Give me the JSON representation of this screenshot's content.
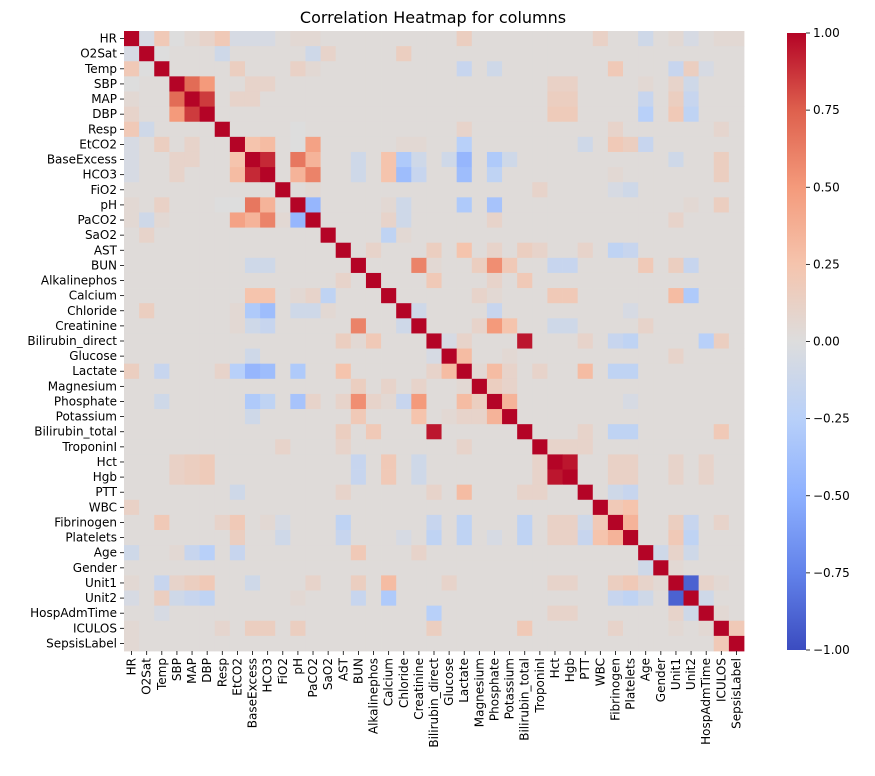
{
  "chart_data": {
    "type": "heatmap",
    "title": "Correlation Heatmap for columns",
    "xlabel": "",
    "ylabel": "",
    "colormap": "coolwarm",
    "vmin": -1,
    "vmax": 1,
    "colorbar_ticks": [
      1.0,
      0.75,
      0.5,
      0.25,
      0.0,
      -0.25,
      -0.5,
      -0.75,
      -1.0
    ],
    "colorbar_tick_labels": [
      "1.00",
      "0.75",
      "0.50",
      "0.25",
      "0.00",
      "−0.25",
      "−0.50",
      "−0.75",
      "−1.00"
    ],
    "labels": [
      "HR",
      "O2Sat",
      "Temp",
      "SBP",
      "MAP",
      "DBP",
      "Resp",
      "EtCO2",
      "BaseExcess",
      "HCO3",
      "FiO2",
      "pH",
      "PaCO2",
      "SaO2",
      "AST",
      "BUN",
      "Alkalinephos",
      "Calcium",
      "Chloride",
      "Creatinine",
      "Bilirubin_direct",
      "Glucose",
      "Lactate",
      "Magnesium",
      "Phosphate",
      "Potassium",
      "Bilirubin_total",
      "TroponinI",
      "Hct",
      "Hgb",
      "PTT",
      "WBC",
      "Fibrinogen",
      "Platelets",
      "Age",
      "Gender",
      "Unit1",
      "Unit2",
      "HospAdmTime",
      "ICULOS",
      "SepsisLabel"
    ],
    "baseline": 0.02,
    "pairs": [
      [
        "HR",
        "O2Sat",
        -0.05
      ],
      [
        "HR",
        "Temp",
        0.2
      ],
      [
        "HR",
        "SBP",
        0.0
      ],
      [
        "HR",
        "MAP",
        0.05
      ],
      [
        "HR",
        "DBP",
        0.1
      ],
      [
        "HR",
        "Resp",
        0.2
      ],
      [
        "HR",
        "EtCO2",
        -0.05
      ],
      [
        "HR",
        "BaseExcess",
        -0.05
      ],
      [
        "HR",
        "HCO3",
        -0.05
      ],
      [
        "HR",
        "pH",
        0.05
      ],
      [
        "HR",
        "PaCO2",
        0.05
      ],
      [
        "HR",
        "Lactate",
        0.15
      ],
      [
        "HR",
        "WBC",
        0.12
      ],
      [
        "HR",
        "Age",
        -0.1
      ],
      [
        "HR",
        "Unit1",
        0.05
      ],
      [
        "HR",
        "Unit2",
        -0.05
      ],
      [
        "HR",
        "ICULOS",
        0.05
      ],
      [
        "HR",
        "SepsisLabel",
        0.05
      ],
      [
        "O2Sat",
        "Temp",
        0.0
      ],
      [
        "O2Sat",
        "Resp",
        -0.1
      ],
      [
        "O2Sat",
        "PaCO2",
        -0.1
      ],
      [
        "O2Sat",
        "SaO2",
        0.1
      ],
      [
        "O2Sat",
        "Chloride",
        0.15
      ],
      [
        "Temp",
        "SBP",
        0.02
      ],
      [
        "Temp",
        "EtCO2",
        0.15
      ],
      [
        "Temp",
        "pH",
        0.12
      ],
      [
        "Temp",
        "PaCO2",
        0.05
      ],
      [
        "Temp",
        "Lactate",
        -0.15
      ],
      [
        "Temp",
        "Fibrinogen",
        0.2
      ],
      [
        "Temp",
        "Unit1",
        -0.15
      ],
      [
        "Temp",
        "Unit2",
        0.15
      ],
      [
        "Temp",
        "HospAdmTime",
        -0.05
      ],
      [
        "Temp",
        "Phosphate",
        -0.1
      ],
      [
        "SBP",
        "MAP",
        0.7
      ],
      [
        "SBP",
        "DBP",
        0.5
      ],
      [
        "SBP",
        "BaseExcess",
        0.1
      ],
      [
        "SBP",
        "HCO3",
        0.1
      ],
      [
        "SBP",
        "Hct",
        0.12
      ],
      [
        "SBP",
        "Hgb",
        0.12
      ],
      [
        "SBP",
        "Age",
        0.05
      ],
      [
        "SBP",
        "Unit1",
        0.1
      ],
      [
        "SBP",
        "Unit2",
        -0.1
      ],
      [
        "MAP",
        "DBP",
        0.85
      ],
      [
        "MAP",
        "EtCO2",
        0.1
      ],
      [
        "MAP",
        "BaseExcess",
        0.1
      ],
      [
        "MAP",
        "Hct",
        0.15
      ],
      [
        "MAP",
        "Hgb",
        0.15
      ],
      [
        "MAP",
        "Age",
        -0.15
      ],
      [
        "MAP",
        "Unit1",
        0.15
      ],
      [
        "MAP",
        "Unit2",
        -0.15
      ],
      [
        "DBP",
        "Hct",
        0.18
      ],
      [
        "DBP",
        "Hgb",
        0.18
      ],
      [
        "DBP",
        "Age",
        -0.25
      ],
      [
        "DBP",
        "Unit1",
        0.2
      ],
      [
        "DBP",
        "Unit2",
        -0.2
      ],
      [
        "Resp",
        "Lactate",
        0.1
      ],
      [
        "Resp",
        "pH",
        0.0
      ],
      [
        "Resp",
        "ICULOS",
        0.08
      ],
      [
        "Resp",
        "Fibrinogen",
        0.1
      ],
      [
        "EtCO2",
        "BaseExcess",
        0.25
      ],
      [
        "EtCO2",
        "HCO3",
        0.3
      ],
      [
        "EtCO2",
        "pH",
        0.0
      ],
      [
        "EtCO2",
        "PaCO2",
        0.45
      ],
      [
        "EtCO2",
        "Lactate",
        -0.25
      ],
      [
        "EtCO2",
        "Fibrinogen",
        0.2
      ],
      [
        "EtCO2",
        "Platelets",
        0.15
      ],
      [
        "EtCO2",
        "Age",
        -0.15
      ],
      [
        "EtCO2",
        "PTT",
        -0.1
      ],
      [
        "EtCO2",
        "Creatinine",
        0.05
      ],
      [
        "EtCO2",
        "Chloride",
        0.05
      ],
      [
        "BaseExcess",
        "HCO3",
        0.9
      ],
      [
        "BaseExcess",
        "pH",
        0.65
      ],
      [
        "BaseExcess",
        "PaCO2",
        0.35
      ],
      [
        "BaseExcess",
        "Calcium",
        0.25
      ],
      [
        "BaseExcess",
        "Chloride",
        -0.3
      ],
      [
        "BaseExcess",
        "Lactate",
        -0.45
      ],
      [
        "BaseExcess",
        "Phosphate",
        -0.3
      ],
      [
        "BaseExcess",
        "Potassium",
        -0.1
      ],
      [
        "BaseExcess",
        "BUN",
        -0.1
      ],
      [
        "BaseExcess",
        "Creatinine",
        -0.1
      ],
      [
        "BaseExcess",
        "Unit1",
        -0.1
      ],
      [
        "BaseExcess",
        "ICULOS",
        0.15
      ],
      [
        "BaseExcess",
        "Glucose",
        -0.1
      ],
      [
        "HCO3",
        "pH",
        0.35
      ],
      [
        "HCO3",
        "PaCO2",
        0.6
      ],
      [
        "HCO3",
        "Calcium",
        0.25
      ],
      [
        "HCO3",
        "Chloride",
        -0.4
      ],
      [
        "HCO3",
        "Lactate",
        -0.4
      ],
      [
        "HCO3",
        "Phosphate",
        -0.2
      ],
      [
        "HCO3",
        "BUN",
        -0.1
      ],
      [
        "HCO3",
        "Creatinine",
        -0.15
      ],
      [
        "HCO3",
        "ICULOS",
        0.15
      ],
      [
        "HCO3",
        "Fibrinogen",
        0.05
      ],
      [
        "FiO2",
        "PaCO2",
        0.05
      ],
      [
        "FiO2",
        "Platelets",
        -0.1
      ],
      [
        "FiO2",
        "TroponinI",
        0.1
      ],
      [
        "FiO2",
        "Fibrinogen",
        -0.05
      ],
      [
        "pH",
        "PaCO2",
        -0.45
      ],
      [
        "pH",
        "Lactate",
        -0.3
      ],
      [
        "pH",
        "Phosphate",
        -0.35
      ],
      [
        "pH",
        "Calcium",
        0.05
      ],
      [
        "pH",
        "Chloride",
        -0.1
      ],
      [
        "pH",
        "ICULOS",
        0.15
      ],
      [
        "pH",
        "Unit2",
        0.05
      ],
      [
        "PaCO2",
        "Calcium",
        0.1
      ],
      [
        "PaCO2",
        "Chloride",
        -0.1
      ],
      [
        "PaCO2",
        "Phosphate",
        0.1
      ],
      [
        "PaCO2",
        "Unit1",
        0.1
      ],
      [
        "SaO2",
        "Calcium",
        -0.2
      ],
      [
        "SaO2",
        "Chloride",
        0.05
      ],
      [
        "AST",
        "Lactate",
        0.25
      ],
      [
        "AST",
        "Bilirubin_total",
        0.15
      ],
      [
        "AST",
        "Bilirubin_direct",
        0.15
      ],
      [
        "AST",
        "Alkalinephos",
        0.1
      ],
      [
        "AST",
        "Phosphate",
        0.1
      ],
      [
        "AST",
        "Fibrinogen",
        -0.2
      ],
      [
        "AST",
        "Platelets",
        -0.15
      ],
      [
        "AST",
        "TroponinI",
        0.1
      ],
      [
        "AST",
        "PTT",
        0.1
      ],
      [
        "BUN",
        "Creatinine",
        0.6
      ],
      [
        "BUN",
        "Phosphate",
        0.55
      ],
      [
        "BUN",
        "Potassium",
        0.2
      ],
      [
        "BUN",
        "Magnesium",
        0.15
      ],
      [
        "BUN",
        "Age",
        0.2
      ],
      [
        "BUN",
        "Hct",
        -0.15
      ],
      [
        "BUN",
        "Hgb",
        -0.15
      ],
      [
        "BUN",
        "Bilirubin_direct",
        0.05
      ],
      [
        "BUN",
        "Unit1",
        0.15
      ],
      [
        "BUN",
        "Unit2",
        -0.15
      ],
      [
        "Alkalinephos",
        "Bilirubin_total",
        0.2
      ],
      [
        "Alkalinephos",
        "Bilirubin_direct",
        0.2
      ],
      [
        "Alkalinephos",
        "Phosphate",
        0.1
      ],
      [
        "Calcium",
        "Unit1",
        0.3
      ],
      [
        "Calcium",
        "Unit2",
        -0.3
      ],
      [
        "Calcium",
        "Hct",
        0.2
      ],
      [
        "Calcium",
        "Hgb",
        0.2
      ],
      [
        "Calcium",
        "Phosphate",
        0.05
      ],
      [
        "Calcium",
        "Magnesium",
        0.1
      ],
      [
        "Chloride",
        "Creatinine",
        -0.1
      ],
      [
        "Chloride",
        "Phosphate",
        -0.15
      ],
      [
        "Chloride",
        "Platelets",
        -0.05
      ],
      [
        "Creatinine",
        "Phosphate",
        0.5
      ],
      [
        "Creatinine",
        "Potassium",
        0.25
      ],
      [
        "Creatinine",
        "Magnesium",
        0.1
      ],
      [
        "Creatinine",
        "Age",
        0.1
      ],
      [
        "Creatinine",
        "Hct",
        -0.1
      ],
      [
        "Creatinine",
        "Hgb",
        -0.1
      ],
      [
        "Bilirubin_direct",
        "Bilirubin_total",
        0.95
      ],
      [
        "Bilirubin_direct",
        "Glucose",
        -0.05
      ],
      [
        "Bilirubin_direct",
        "Platelets",
        -0.2
      ],
      [
        "Bilirubin_direct",
        "Fibrinogen",
        -0.15
      ],
      [
        "Bilirubin_direct",
        "HospAdmTime",
        -0.25
      ],
      [
        "Bilirubin_direct",
        "ICULOS",
        0.15
      ],
      [
        "Bilirubin_direct",
        "Lactate",
        0.1
      ],
      [
        "Bilirubin_direct",
        "PTT",
        0.1
      ],
      [
        "Glucose",
        "Lactate",
        0.3
      ],
      [
        "Glucose",
        "Potassium",
        0.05
      ],
      [
        "Glucose",
        "Unit1",
        0.1
      ],
      [
        "Lactate",
        "Phosphate",
        0.3
      ],
      [
        "Lactate",
        "PTT",
        0.3
      ],
      [
        "Lactate",
        "Potassium",
        0.1
      ],
      [
        "Lactate",
        "TroponinI",
        0.1
      ],
      [
        "Lactate",
        "Fibrinogen",
        -0.2
      ],
      [
        "Lactate",
        "Platelets",
        -0.2
      ],
      [
        "Lactate",
        "Magnesium",
        0.05
      ],
      [
        "Magnesium",
        "Phosphate",
        0.15
      ],
      [
        "Magnesium",
        "Potassium",
        0.1
      ],
      [
        "Phosphate",
        "Potassium",
        0.35
      ],
      [
        "Phosphate",
        "Platelets",
        -0.05
      ],
      [
        "Bilirubin_total",
        "Platelets",
        -0.2
      ],
      [
        "Bilirubin_total",
        "Fibrinogen",
        -0.2
      ],
      [
        "Bilirubin_total",
        "ICULOS",
        0.2
      ],
      [
        "Bilirubin_total",
        "PTT",
        0.1
      ],
      [
        "TroponinI",
        "Hct",
        0.1
      ],
      [
        "TroponinI",
        "Hgb",
        0.1
      ],
      [
        "TroponinI",
        "PTT",
        0.1
      ],
      [
        "Hct",
        "Hgb",
        0.95
      ],
      [
        "Hct",
        "Fibrinogen",
        0.12
      ],
      [
        "Hct",
        "Platelets",
        0.12
      ],
      [
        "Hct",
        "Unit1",
        0.1
      ],
      [
        "Hct",
        "HospAdmTime",
        0.1
      ],
      [
        "Hgb",
        "Fibrinogen",
        0.12
      ],
      [
        "Hgb",
        "Platelets",
        0.12
      ],
      [
        "Hgb",
        "Unit1",
        0.1
      ],
      [
        "Hgb",
        "HospAdmTime",
        0.1
      ],
      [
        "PTT",
        "Fibrinogen",
        -0.1
      ],
      [
        "PTT",
        "Platelets",
        -0.15
      ],
      [
        "WBC",
        "Platelets",
        0.25
      ],
      [
        "WBC",
        "Fibrinogen",
        0.2
      ],
      [
        "Fibrinogen",
        "Platelets",
        0.35
      ],
      [
        "Fibrinogen",
        "Unit1",
        0.15
      ],
      [
        "Fibrinogen",
        "Unit2",
        -0.15
      ],
      [
        "Fibrinogen",
        "ICULOS",
        0.1
      ],
      [
        "Platelets",
        "Unit1",
        0.2
      ],
      [
        "Platelets",
        "Unit2",
        -0.2
      ],
      [
        "Age",
        "Gender",
        -0.1
      ],
      [
        "Age",
        "Unit1",
        0.1
      ],
      [
        "Age",
        "Unit2",
        -0.1
      ],
      [
        "Gender",
        "Unit1",
        0.05
      ],
      [
        "Unit1",
        "Unit2",
        -0.9
      ],
      [
        "Unit1",
        "HospAdmTime",
        0.1
      ],
      [
        "Unit1",
        "ICULOS",
        0.05
      ],
      [
        "Unit2",
        "HospAdmTime",
        -0.1
      ],
      [
        "HospAdmTime",
        "ICULOS",
        0.05
      ],
      [
        "ICULOS",
        "SepsisLabel",
        0.2
      ]
    ]
  }
}
